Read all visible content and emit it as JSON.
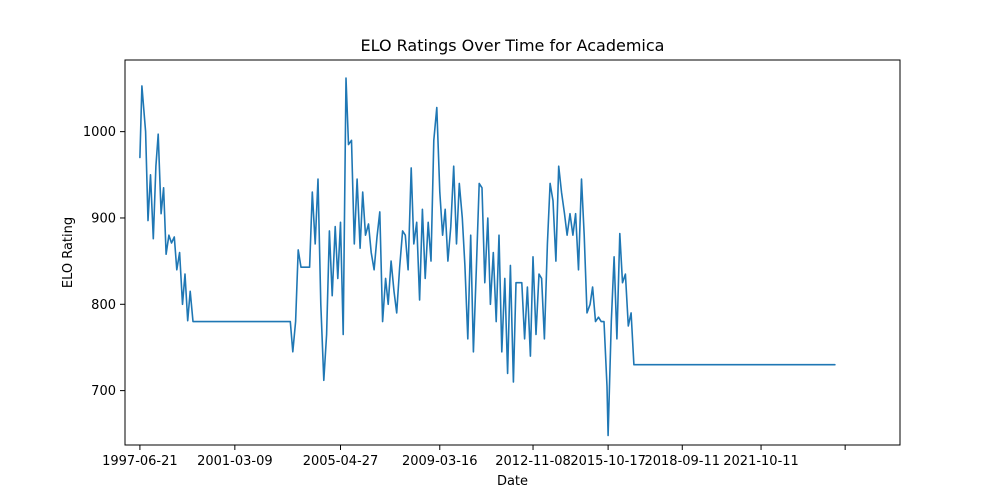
{
  "chart_data": {
    "type": "line",
    "title": "ELO Ratings Over Time for Academica",
    "xlabel": "Date",
    "ylabel": "ELO Rating",
    "grid": false,
    "legend": "none",
    "color": "#1f77b4",
    "xlim": [
      "1996-11-20",
      "2027-03-20"
    ],
    "ylim": [
      637,
      1083
    ],
    "x_ticks": [
      "1997-06-21",
      "2001-03-09",
      "2005-04-27",
      "2009-03-16",
      "2012-11-08",
      "2015-10-17",
      "2018-09-11",
      "2021-10-11",
      "2025-01-25"
    ],
    "x_tick_labels": [
      "1997-06-21",
      "2001-03-09",
      "2005-04-27",
      "2009-03-16",
      "2012-11-08",
      "2015-10-17",
      "2018-09-11",
      "2021-10-11",
      ""
    ],
    "y_ticks": [
      700,
      800,
      900,
      1000
    ],
    "series": [
      {
        "x": [
          "1997-06-21",
          "1997-07-20",
          "1997-09-10",
          "1997-10-15",
          "1997-11-20",
          "1997-12-30",
          "1998-02-05",
          "1998-03-10",
          "1998-04-20",
          "1998-05-25",
          "1998-07-01",
          "1998-08-10",
          "1998-09-15",
          "1998-10-25",
          "1998-12-01",
          "1999-01-10",
          "1999-02-20",
          "1999-03-28",
          "1999-05-05",
          "1999-06-10",
          "1999-07-20",
          "1999-08-25",
          "2003-05-10",
          "2003-06-15",
          "2003-07-25",
          "2003-09-01",
          "2003-10-10",
          "2003-11-20",
          "2004-01-01",
          "2004-02-10",
          "2004-03-20",
          "2004-05-01",
          "2004-06-10",
          "2004-07-20",
          "2004-09-01",
          "2004-10-10",
          "2004-11-20",
          "2004-12-30",
          "2005-02-10",
          "2005-03-20",
          "2005-04-27",
          "2005-06-05",
          "2005-07-15",
          "2005-08-20",
          "2005-10-01",
          "2005-11-10",
          "2005-12-20",
          "2006-02-01",
          "2006-03-10",
          "2006-04-20",
          "2006-06-01",
          "2006-07-10",
          "2006-08-20",
          "2006-10-01",
          "2006-11-10",
          "2006-12-20",
          "2007-02-01",
          "2007-03-10",
          "2007-04-20",
          "2007-06-01",
          "2007-07-10",
          "2007-08-20",
          "2007-10-01",
          "2007-11-10",
          "2007-12-20",
          "2008-02-01",
          "2008-03-10",
          "2008-04-20",
          "2008-06-01",
          "2008-07-10",
          "2008-08-20",
          "2008-10-01",
          "2008-11-10",
          "2008-12-20",
          "2009-02-01",
          "2009-03-16",
          "2009-04-25",
          "2009-06-01",
          "2009-07-10",
          "2009-08-20",
          "2009-10-01",
          "2009-11-10",
          "2009-12-20",
          "2010-02-01",
          "2010-03-10",
          "2010-04-20",
          "2010-06-01",
          "2010-07-10",
          "2010-08-20",
          "2010-10-01",
          "2010-11-10",
          "2010-12-20",
          "2011-02-01",
          "2011-03-10",
          "2011-04-20",
          "2011-06-01",
          "2011-07-10",
          "2011-08-20",
          "2011-10-01",
          "2011-11-10",
          "2011-12-20",
          "2012-02-01",
          "2012-03-10",
          "2012-04-20",
          "2012-06-01",
          "2012-07-10",
          "2012-08-20",
          "2012-10-01",
          "2012-11-08",
          "2012-12-20",
          "2013-02-01",
          "2013-03-10",
          "2013-04-20",
          "2013-06-01",
          "2013-07-10",
          "2013-08-20",
          "2013-10-01",
          "2013-11-10",
          "2013-12-20",
          "2014-02-01",
          "2014-03-10",
          "2014-04-20",
          "2014-06-01",
          "2014-07-10",
          "2014-08-20",
          "2014-10-01",
          "2014-11-10",
          "2014-12-20",
          "2015-02-01",
          "2015-03-10",
          "2015-04-20",
          "2015-06-01",
          "2015-07-10",
          "2015-08-20",
          "2015-10-01",
          "2015-10-17",
          "2015-12-01",
          "2016-01-10",
          "2016-02-20",
          "2016-04-01",
          "2016-05-10",
          "2016-06-20",
          "2016-08-01",
          "2016-09-10",
          "2016-10-20",
          "2016-12-01",
          "2017-01-10",
          "2017-02-20",
          "2024-09-01"
        ],
        "y": [
          970,
          1053,
          1000,
          897,
          950,
          876,
          960,
          997,
          905,
          935,
          858,
          880,
          871,
          878,
          840,
          860,
          800,
          835,
          781,
          815,
          780,
          780,
          780,
          745,
          780,
          863,
          843,
          843,
          843,
          843,
          930,
          870,
          945,
          800,
          712,
          765,
          885,
          810,
          890,
          830,
          895,
          765,
          1062,
          985,
          990,
          870,
          945,
          865,
          930,
          880,
          893,
          860,
          840,
          878,
          907,
          780,
          830,
          800,
          850,
          815,
          790,
          842,
          885,
          880,
          840,
          958,
          870,
          895,
          805,
          910,
          830,
          895,
          850,
          990,
          1028,
          930,
          880,
          910,
          850,
          890,
          960,
          870,
          940,
          900,
          845,
          760,
          880,
          745,
          840,
          940,
          935,
          825,
          900,
          800,
          860,
          780,
          880,
          745,
          830,
          720,
          845,
          710,
          825,
          825,
          825,
          760,
          820,
          740,
          855,
          765,
          835,
          830,
          760,
          870,
          940,
          920,
          850,
          960,
          930,
          905,
          880,
          905,
          880,
          905,
          840,
          945,
          880,
          790,
          800,
          820,
          780,
          785,
          780,
          780,
          705,
          648,
          780,
          855,
          760,
          882,
          825,
          835,
          775,
          790,
          730,
          730,
          730,
          730,
          730
        ]
      }
    ]
  }
}
